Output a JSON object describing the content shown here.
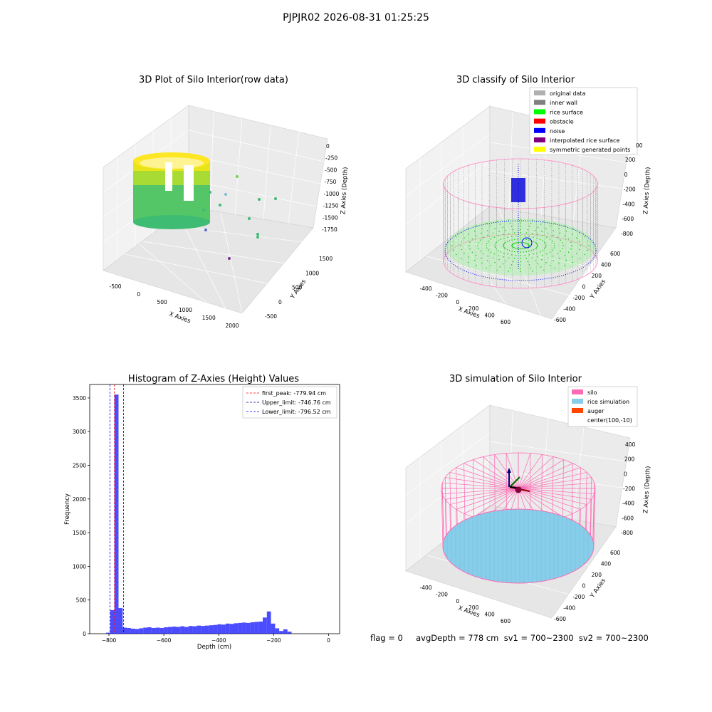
{
  "figure_title": "PJPJR02 2026-08-31 01:25:25",
  "footer": "flag = 0     avgDepth = 778 cm  sv1 = 700~2300  sv2 = 700~2300",
  "chart_data": [
    {
      "type": "scatter",
      "projection": "3d",
      "title": "3D Plot of Silo Interior(row data)",
      "xlabel": "X Axies",
      "ylabel": "Y Axies",
      "zlabel": "Z Axies (Depth)",
      "x_ticks": [
        "-500",
        "0",
        "500",
        "1000",
        "1500",
        "2000"
      ],
      "y_ticks": [
        "-500",
        "0",
        "500",
        "1000",
        "1500"
      ],
      "z_ticks": [
        "0",
        "-250",
        "-500",
        "-750",
        "-1000",
        "-1250",
        "-1500",
        "-1750"
      ],
      "colormap": "viridis",
      "grid": true
    },
    {
      "type": "scatter",
      "projection": "3d",
      "title": "3D classify of Silo Interior",
      "xlabel": "X Axies",
      "ylabel": "Y Axies",
      "zlabel": "Z Axies (Depth)",
      "x_ticks": [
        "-400",
        "-200",
        "0",
        "200",
        "400",
        "600"
      ],
      "y_ticks": [
        "-600",
        "-400",
        "-200",
        "0",
        "200",
        "400",
        "600"
      ],
      "z_ticks": [
        "200",
        "0",
        "-200",
        "-400",
        "-600",
        "-800"
      ],
      "z_top_partial": "00",
      "legend": [
        {
          "label": "original data",
          "color": "#b0b0b0"
        },
        {
          "label": "inner wall",
          "color": "#808080"
        },
        {
          "label": "rice surface",
          "color": "#00ff00"
        },
        {
          "label": "obstacle",
          "color": "#ff0000"
        },
        {
          "label": "noise",
          "color": "#0000ff"
        },
        {
          "label": "interpolated rice surface",
          "color": "#800080"
        },
        {
          "label": "symmetric generated points",
          "color": "#ffff00"
        }
      ],
      "legend_position": "top-right",
      "grid": true
    },
    {
      "type": "bar",
      "title": "Histogram of Z-Axies (Height) Values",
      "xlabel": "Depth (cm)",
      "ylabel": "Frequency",
      "xlim": [
        -870,
        40
      ],
      "ylim": [
        0,
        3700
      ],
      "x_ticks": [
        -800,
        -600,
        -400,
        -200,
        0
      ],
      "y_ticks": [
        0,
        500,
        1000,
        1500,
        2000,
        2500,
        3000,
        3500
      ],
      "bin_width": 15,
      "bin_start": -810,
      "values": [
        15,
        350,
        3550,
        380,
        90,
        85,
        75,
        70,
        80,
        90,
        95,
        85,
        90,
        85,
        95,
        100,
        105,
        100,
        110,
        100,
        115,
        110,
        120,
        115,
        120,
        125,
        130,
        140,
        135,
        150,
        145,
        155,
        160,
        165,
        160,
        170,
        175,
        180,
        240,
        330,
        150,
        80,
        40,
        65,
        30
      ],
      "color": "#0000ff",
      "lines": [
        {
          "label": "first_peak: -779.94 cm",
          "x": -779.94,
          "color": "#ff0000"
        },
        {
          "label": "Upper_limit: -746.76 cm",
          "x": -746.76,
          "color": "#00008b"
        },
        {
          "label": "Lower_limit: -796.52 cm",
          "x": -796.52,
          "color": "#0000ff"
        }
      ],
      "legend_position": "top-right"
    },
    {
      "type": "scatter",
      "projection": "3d",
      "title": "3D simulation of Silo Interior",
      "xlabel": "X Axies",
      "ylabel": "Y Axies",
      "zlabel": "Z Axies (Depth)",
      "x_ticks": [
        "-400",
        "-200",
        "0",
        "200",
        "400",
        "600"
      ],
      "y_ticks": [
        "-600",
        "-400",
        "-200",
        "0",
        "200",
        "400",
        "600"
      ],
      "z_ticks": [
        "400",
        "200",
        "0",
        "-200",
        "-400",
        "-600",
        "-800"
      ],
      "legend": [
        {
          "label": "silo",
          "color": "#ff69b4"
        },
        {
          "label": "rice simulation",
          "color": "#87ceeb"
        },
        {
          "label": "auger",
          "color": "#ff4500"
        },
        {
          "label": "center(100,-10)",
          "color": ""
        }
      ],
      "legend_position": "top-right",
      "grid": true
    }
  ]
}
